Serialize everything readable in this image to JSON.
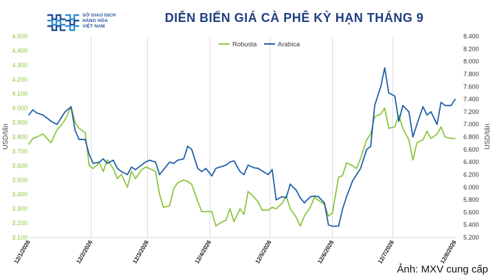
{
  "header": {
    "logo_line1": "SỞ GIAO DỊCH",
    "logo_line2": "HÀNG HÓA",
    "logo_line3": "VIỆT NAM",
    "title": "DIỄN BIẾN GIÁ CÀ PHÊ KỲ HẠN THÁNG 9"
  },
  "credit": "Ảnh: MXV cung cấp",
  "chart_data": {
    "type": "line",
    "title": "DIỄN BIẾN GIÁ CÀ PHÊ KỲ HẠN THÁNG 9",
    "y_left_label": "USD/tấn",
    "y_right_label": "USD/tấn",
    "y_left_range": [
      3100,
      4500
    ],
    "y_left_step": 100,
    "y_right_range": [
      5200,
      8400
    ],
    "y_right_step": 200,
    "x_tick_labels": [
      "12/1/2026",
      "12/2/2026",
      "12/3/2026",
      "12/4/2026",
      "12/5/2026",
      "12/6/2026",
      "12/7/2026",
      "12/8/2026"
    ],
    "x_range": [
      "2026-01-12",
      "2026-08-12"
    ],
    "gridlines": "vertical at month ticks",
    "legend_position": "top-center",
    "tick_format": "thousands-dot-3-decimals",
    "colors": {
      "Robusta": "#8cc63f",
      "Arabica": "#1f5fa8"
    },
    "series": [
      {
        "name": "Robusta",
        "axis": "left",
        "points": [
          [
            "2026-01-12",
            3750
          ],
          [
            "2026-01-14",
            3790
          ],
          [
            "2026-01-16",
            3800
          ],
          [
            "2026-01-19",
            3820
          ],
          [
            "2026-01-21",
            3790
          ],
          [
            "2026-01-23",
            3760
          ],
          [
            "2026-01-26",
            3850
          ],
          [
            "2026-01-28",
            3880
          ],
          [
            "2026-01-30",
            3920
          ],
          [
            "2026-02-02",
            4010
          ],
          [
            "2026-02-04",
            3900
          ],
          [
            "2026-02-06",
            3860
          ],
          [
            "2026-02-09",
            3830
          ],
          [
            "2026-02-11",
            3600
          ],
          [
            "2026-02-13",
            3580
          ],
          [
            "2026-02-16",
            3620
          ],
          [
            "2026-02-18",
            3560
          ],
          [
            "2026-02-20",
            3640
          ],
          [
            "2026-02-23",
            3580
          ],
          [
            "2026-02-25",
            3510
          ],
          [
            "2026-02-27",
            3540
          ],
          [
            "2026-03-02",
            3450
          ],
          [
            "2026-03-04",
            3560
          ],
          [
            "2026-03-06",
            3510
          ],
          [
            "2026-03-09",
            3570
          ],
          [
            "2026-03-11",
            3590
          ],
          [
            "2026-03-13",
            3580
          ],
          [
            "2026-03-16",
            3560
          ],
          [
            "2026-03-18",
            3400
          ],
          [
            "2026-03-20",
            3310
          ],
          [
            "2026-03-23",
            3320
          ],
          [
            "2026-03-25",
            3440
          ],
          [
            "2026-03-27",
            3480
          ],
          [
            "2026-03-30",
            3500
          ],
          [
            "2026-04-01",
            3490
          ],
          [
            "2026-04-03",
            3470
          ],
          [
            "2026-04-06",
            3350
          ],
          [
            "2026-04-08",
            3280
          ],
          [
            "2026-04-10",
            3280
          ],
          [
            "2026-04-13",
            3280
          ],
          [
            "2026-04-15",
            3180
          ],
          [
            "2026-04-17",
            3200
          ],
          [
            "2026-04-20",
            3220
          ],
          [
            "2026-04-22",
            3300
          ],
          [
            "2026-04-24",
            3210
          ],
          [
            "2026-04-27",
            3300
          ],
          [
            "2026-04-29",
            3260
          ],
          [
            "2026-05-01",
            3420
          ],
          [
            "2026-05-04",
            3380
          ],
          [
            "2026-05-06",
            3350
          ],
          [
            "2026-05-08",
            3290
          ],
          [
            "2026-05-11",
            3290
          ],
          [
            "2026-05-13",
            3310
          ],
          [
            "2026-05-15",
            3300
          ],
          [
            "2026-05-18",
            3340
          ],
          [
            "2026-05-20",
            3390
          ],
          [
            "2026-05-22",
            3300
          ],
          [
            "2026-05-25",
            3240
          ],
          [
            "2026-05-27",
            3180
          ],
          [
            "2026-05-29",
            3250
          ],
          [
            "2026-06-01",
            3310
          ],
          [
            "2026-06-03",
            3380
          ],
          [
            "2026-06-05",
            3360
          ],
          [
            "2026-06-08",
            3330
          ],
          [
            "2026-06-10",
            3250
          ],
          [
            "2026-06-12",
            3270
          ],
          [
            "2026-06-15",
            3520
          ],
          [
            "2026-06-17",
            3530
          ],
          [
            "2026-06-19",
            3620
          ],
          [
            "2026-06-22",
            3600
          ],
          [
            "2026-06-24",
            3580
          ],
          [
            "2026-06-26",
            3650
          ],
          [
            "2026-06-29",
            3780
          ],
          [
            "2026-07-01",
            3820
          ],
          [
            "2026-07-03",
            3940
          ],
          [
            "2026-07-06",
            3960
          ],
          [
            "2026-07-08",
            4000
          ],
          [
            "2026-07-10",
            3860
          ],
          [
            "2026-07-13",
            3870
          ],
          [
            "2026-07-15",
            3950
          ],
          [
            "2026-07-17",
            3860
          ],
          [
            "2026-07-20",
            3780
          ],
          [
            "2026-07-22",
            3640
          ],
          [
            "2026-07-24",
            3760
          ],
          [
            "2026-07-27",
            3780
          ],
          [
            "2026-07-29",
            3840
          ],
          [
            "2026-07-31",
            3790
          ],
          [
            "2026-08-03",
            3820
          ],
          [
            "2026-08-05",
            3870
          ],
          [
            "2026-08-07",
            3800
          ],
          [
            "2026-08-10",
            3790
          ],
          [
            "2026-08-12",
            3790
          ]
        ]
      },
      {
        "name": "Arabica",
        "axis": "right",
        "points": [
          [
            "2026-01-12",
            7150
          ],
          [
            "2026-01-14",
            7230
          ],
          [
            "2026-01-16",
            7180
          ],
          [
            "2026-01-19",
            7150
          ],
          [
            "2026-01-21",
            7100
          ],
          [
            "2026-01-23",
            7050
          ],
          [
            "2026-01-26",
            7000
          ],
          [
            "2026-01-28",
            7100
          ],
          [
            "2026-01-30",
            7200
          ],
          [
            "2026-02-02",
            7280
          ],
          [
            "2026-02-04",
            6900
          ],
          [
            "2026-02-06",
            6760
          ],
          [
            "2026-02-09",
            6760
          ],
          [
            "2026-02-11",
            6520
          ],
          [
            "2026-02-13",
            6380
          ],
          [
            "2026-02-16",
            6400
          ],
          [
            "2026-02-18",
            6450
          ],
          [
            "2026-02-20",
            6380
          ],
          [
            "2026-02-23",
            6430
          ],
          [
            "2026-02-25",
            6300
          ],
          [
            "2026-02-27",
            6250
          ],
          [
            "2026-03-02",
            6200
          ],
          [
            "2026-03-04",
            6320
          ],
          [
            "2026-03-06",
            6280
          ],
          [
            "2026-03-09",
            6350
          ],
          [
            "2026-03-11",
            6400
          ],
          [
            "2026-03-13",
            6430
          ],
          [
            "2026-03-16",
            6400
          ],
          [
            "2026-03-18",
            6200
          ],
          [
            "2026-03-20",
            6280
          ],
          [
            "2026-03-23",
            6400
          ],
          [
            "2026-03-25",
            6380
          ],
          [
            "2026-03-27",
            6430
          ],
          [
            "2026-03-30",
            6450
          ],
          [
            "2026-04-01",
            6650
          ],
          [
            "2026-04-03",
            6600
          ],
          [
            "2026-04-06",
            6300
          ],
          [
            "2026-04-08",
            6250
          ],
          [
            "2026-04-10",
            6300
          ],
          [
            "2026-04-13",
            6180
          ],
          [
            "2026-04-15",
            6300
          ],
          [
            "2026-04-17",
            6320
          ],
          [
            "2026-04-20",
            6350
          ],
          [
            "2026-04-22",
            6400
          ],
          [
            "2026-04-24",
            6420
          ],
          [
            "2026-04-27",
            6250
          ],
          [
            "2026-04-29",
            6200
          ],
          [
            "2026-05-01",
            6350
          ],
          [
            "2026-05-04",
            6310
          ],
          [
            "2026-05-06",
            6300
          ],
          [
            "2026-05-08",
            6260
          ],
          [
            "2026-05-11",
            6200
          ],
          [
            "2026-05-13",
            6280
          ],
          [
            "2026-05-15",
            5800
          ],
          [
            "2026-05-18",
            5850
          ],
          [
            "2026-05-20",
            5830
          ],
          [
            "2026-05-22",
            6050
          ],
          [
            "2026-05-25",
            5950
          ],
          [
            "2026-05-27",
            5830
          ],
          [
            "2026-05-29",
            5750
          ],
          [
            "2026-06-01",
            5850
          ],
          [
            "2026-06-03",
            5860
          ],
          [
            "2026-06-05",
            5850
          ],
          [
            "2026-06-08",
            5750
          ],
          [
            "2026-06-10",
            5400
          ],
          [
            "2026-06-12",
            5380
          ],
          [
            "2026-06-15",
            5380
          ],
          [
            "2026-06-17",
            5650
          ],
          [
            "2026-06-19",
            5850
          ],
          [
            "2026-06-22",
            6100
          ],
          [
            "2026-06-24",
            6200
          ],
          [
            "2026-06-26",
            6300
          ],
          [
            "2026-06-29",
            6600
          ],
          [
            "2026-07-01",
            6650
          ],
          [
            "2026-07-03",
            7300
          ],
          [
            "2026-07-06",
            7600
          ],
          [
            "2026-07-08",
            7900
          ],
          [
            "2026-07-10",
            7500
          ],
          [
            "2026-07-13",
            7450
          ],
          [
            "2026-07-15",
            7050
          ],
          [
            "2026-07-17",
            7300
          ],
          [
            "2026-07-20",
            7200
          ],
          [
            "2026-07-22",
            6800
          ],
          [
            "2026-07-24",
            7000
          ],
          [
            "2026-07-27",
            7280
          ],
          [
            "2026-07-29",
            7150
          ],
          [
            "2026-07-31",
            7200
          ],
          [
            "2026-08-03",
            7000
          ],
          [
            "2026-08-05",
            7350
          ],
          [
            "2026-08-07",
            7300
          ],
          [
            "2026-08-10",
            7300
          ],
          [
            "2026-08-12",
            7400
          ]
        ]
      }
    ]
  }
}
